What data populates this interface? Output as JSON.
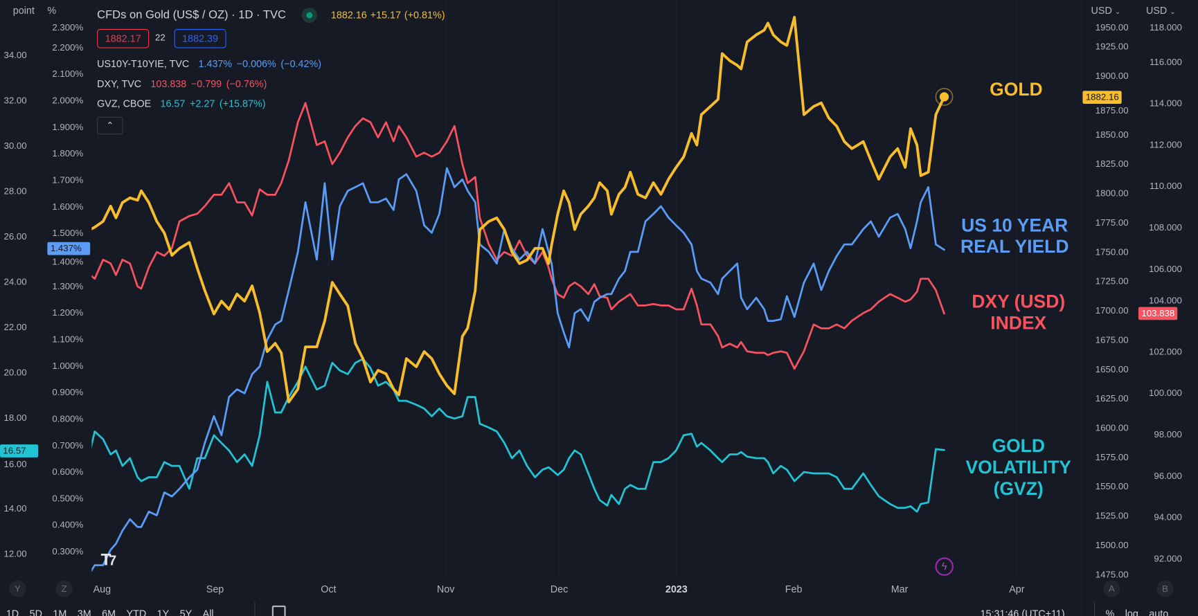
{
  "header": {
    "left_units": [
      "point",
      "%"
    ],
    "right_units": [
      "USD",
      "USD"
    ]
  },
  "legend": {
    "main": {
      "title": "CFDs on Gold (US$ / OZ) · 1D · TVC",
      "last": "1882.16",
      "change": "+15.17",
      "change_pct": "(+0.81%)"
    },
    "sell": "1882.17",
    "spread": "22",
    "buy": "1882.39",
    "series": [
      {
        "symbol": "US10Y-T10YIE, TVC",
        "last": "1.437%",
        "change": "−0.006%",
        "change_pct": "(−0.42%)"
      },
      {
        "symbol": "DXY, TVC",
        "last": "103.838",
        "change": "−0.799",
        "change_pct": "(−0.76%)"
      },
      {
        "symbol": "GVZ, CBOE",
        "last": "16.57",
        "change": "+2.27",
        "change_pct": "(+15.87%)"
      }
    ],
    "collapse_glyph": "⌃"
  },
  "price_badges": {
    "gold": "1882.16",
    "us10y": "1.437%",
    "dxy": "103.838",
    "gvz": "16.57"
  },
  "annotations": {
    "gold": [
      "GOLD"
    ],
    "us10y": [
      "US 10 YEAR",
      "REAL YIELD"
    ],
    "dxy": [
      "DXY (USD)",
      "INDEX"
    ],
    "gvz": [
      "GOLD",
      "VOLATILITY",
      "(GVZ)"
    ]
  },
  "axis_buttons": {
    "y": "Y",
    "z": "Z",
    "a": "A",
    "b": "B"
  },
  "bottom_toolbar": {
    "ranges": [
      "1D",
      "5D",
      "1M",
      "3M",
      "6M",
      "YTD",
      "1Y",
      "5Y",
      "All"
    ],
    "time": "15:31:46 (UTC+11)",
    "percent": "%",
    "log": "log",
    "auto": "auto"
  },
  "colors": {
    "gold": "#f7bd2c",
    "dxy": "#f7525f",
    "us10y": "#5b9cf6",
    "gvz": "#22c3d3",
    "bg": "#161a25"
  },
  "chart_data": {
    "type": "line",
    "title": "CFDs on Gold (US$ / OZ) · 1D · TVC",
    "x_unit": "days since 2022-08-01",
    "x_ticks": [
      {
        "label": "Aug",
        "day": 0
      },
      {
        "label": "Sep",
        "day": 31
      },
      {
        "label": "Oct",
        "day": 61
      },
      {
        "label": "Nov",
        "day": 92
      },
      {
        "label": "Dec",
        "day": 122
      },
      {
        "label": "2023",
        "day": 153,
        "bold": true
      },
      {
        "label": "Feb",
        "day": 184
      },
      {
        "label": "Mar",
        "day": 212
      },
      {
        "label": "Apr",
        "day": 243
      }
    ],
    "axes": {
      "pt": {
        "unit": "point",
        "ticks": [
          12,
          14,
          16,
          18,
          20,
          22,
          24,
          26,
          28,
          30,
          32,
          34
        ]
      },
      "pct": {
        "unit": "%",
        "ticks": [
          0.3,
          0.4,
          0.5,
          0.6,
          0.7,
          0.8,
          0.9,
          1.0,
          1.1,
          1.2,
          1.3,
          1.4,
          1.5,
          1.6,
          1.7,
          1.8,
          1.9,
          2.0,
          2.1,
          2.2,
          2.3
        ]
      },
      "gold": {
        "unit": "USD",
        "ticks": [
          1475,
          1500,
          1525,
          1550,
          1575,
          1600,
          1625,
          1650,
          1675,
          1700,
          1725,
          1750,
          1775,
          1800,
          1825,
          1850,
          1875,
          1900,
          1925,
          1950
        ]
      },
      "dxy": {
        "unit": "USD",
        "ticks": [
          92,
          94,
          96,
          98,
          100,
          102,
          104,
          106,
          108,
          110,
          112,
          114,
          116,
          118
        ]
      }
    },
    "x": [
      -2.0,
      -0.8,
      1.4,
      3.4,
      4.8,
      6.5,
      8.5,
      10.5,
      11.5,
      13.5,
      15.6,
      17.6,
      19.6,
      21.6,
      24.2,
      26.3,
      28.3,
      30.7,
      32.7,
      34.7,
      36.8,
      38.8,
      40.8,
      42.8,
      44.8,
      46.9,
      48.5,
      50.5,
      52.9,
      54.9,
      57.9,
      60.0,
      62.0,
      64.0,
      66.1,
      68.1,
      70.1,
      72.1,
      74.1,
      76.2,
      78.2,
      79.6,
      81.6,
      84.2,
      86.3,
      88.3,
      90.3,
      92.3,
      94.3,
      96.4,
      97.8,
      99.8,
      101.0,
      103.4,
      105.5,
      107.5,
      109.5,
      111.5,
      113.5,
      115.6,
      117.6,
      119.2,
      120.0,
      121.6,
      123.2,
      124.6,
      126.1,
      127.7,
      129.7,
      131.3,
      132.7,
      134.7,
      135.8,
      137.8,
      139.4,
      140.8,
      142.8,
      144.8,
      146.9,
      148.9,
      150.9,
      152.9,
      154.9,
      157.0,
      158.4,
      159.6,
      162.0,
      164.0,
      165.1,
      167.1,
      169.1,
      170.1,
      171.7,
      174.1,
      176.2,
      177.2,
      178.6,
      180.6,
      182.2,
      184.2,
      186.7,
      189.3,
      191.3,
      193.3,
      195.4,
      197.4,
      199.4,
      202.4,
      204.4,
      206.5,
      209.5,
      211.5,
      213.5,
      214.9,
      216.6,
      217.6,
      219.6,
      221.6,
      223.8
    ],
    "series": [
      {
        "name": "GVZ, CBOE",
        "key": "gvz",
        "scale": "pt",
        "values": [
          16.55,
          17.39,
          17.05,
          16.38,
          16.55,
          15.87,
          16.21,
          15.37,
          15.2,
          15.37,
          15.37,
          16.04,
          15.87,
          15.87,
          14.86,
          16.21,
          16.21,
          17.22,
          16.88,
          16.55,
          16.04,
          16.38,
          15.87,
          17.22,
          19.58,
          18.23,
          18.23,
          18.91,
          19.58,
          20.25,
          19.24,
          19.41,
          20.42,
          20.08,
          19.92,
          20.42,
          20.59,
          20.19,
          19.41,
          19.58,
          19.24,
          18.74,
          18.74,
          18.57,
          18.4,
          18.06,
          18.4,
          18.06,
          17.96,
          18.06,
          18.91,
          18.91,
          17.73,
          17.56,
          17.39,
          16.88,
          16.21,
          16.55,
          15.87,
          15.37,
          15.7,
          15.81,
          15.7,
          15.47,
          15.7,
          16.21,
          16.55,
          16.38,
          15.54,
          14.86,
          14.36,
          14.12,
          14.59,
          14.19,
          14.86,
          15.03,
          14.86,
          14.86,
          16.04,
          16.04,
          16.21,
          16.55,
          17.22,
          17.29,
          16.72,
          16.88,
          16.55,
          16.21,
          16.04,
          16.38,
          16.38,
          16.48,
          16.28,
          16.21,
          16.21,
          16.04,
          15.54,
          15.87,
          15.7,
          15.2,
          15.6,
          15.54,
          15.54,
          15.54,
          15.37,
          14.86,
          14.86,
          15.54,
          15.03,
          14.53,
          14.19,
          14.02,
          14.02,
          14.09,
          13.85,
          14.19,
          14.26,
          16.61,
          16.57
        ]
      },
      {
        "name": "DXY, TVC",
        "key": "dxy",
        "scale": "dxy",
        "values": [
          105.7,
          105.52,
          106.44,
          106.26,
          105.7,
          106.44,
          106.26,
          105.15,
          105.04,
          106.07,
          106.81,
          106.63,
          107.0,
          108.29,
          108.55,
          108.66,
          109.03,
          109.58,
          109.58,
          110.14,
          109.21,
          109.21,
          108.58,
          109.84,
          109.58,
          109.58,
          110.14,
          111.24,
          113.08,
          114.01,
          111.98,
          112.16,
          111.06,
          111.61,
          112.35,
          112.9,
          113.27,
          113.08,
          112.35,
          113.08,
          112.16,
          112.9,
          112.35,
          111.42,
          111.61,
          111.42,
          111.61,
          112.16,
          112.9,
          111.06,
          110.14,
          110.43,
          108.47,
          107.18,
          106.44,
          106.81,
          106.63,
          107.37,
          106.63,
          106.26,
          106.81,
          106.07,
          105.52,
          104.78,
          104.6,
          105.15,
          105.34,
          105.15,
          104.78,
          105.26,
          104.67,
          104.6,
          104.04,
          104.41,
          104.6,
          104.78,
          104.23,
          104.23,
          104.3,
          104.23,
          104.23,
          104.04,
          104.04,
          105.04,
          104.23,
          103.31,
          103.31,
          102.75,
          102.2,
          102.38,
          102.2,
          102.46,
          102.01,
          101.94,
          101.94,
          101.83,
          101.94,
          102.01,
          101.94,
          101.17,
          102.01,
          103.31,
          103.12,
          103.12,
          103.31,
          103.12,
          103.49,
          103.86,
          104.04,
          104.41,
          104.78,
          104.6,
          104.41,
          104.52,
          104.89,
          105.52,
          105.52,
          104.97,
          103.838
        ]
      },
      {
        "name": "US10Y-T10YIE, TVC",
        "key": "us10y",
        "scale": "pct",
        "values": [
          0.22,
          0.248,
          0.248,
          0.306,
          0.329,
          0.378,
          0.421,
          0.392,
          0.392,
          0.45,
          0.436,
          0.522,
          0.507,
          0.536,
          0.579,
          0.608,
          0.709,
          0.81,
          0.738,
          0.882,
          0.911,
          0.896,
          0.968,
          0.997,
          1.098,
          1.155,
          1.169,
          1.285,
          1.429,
          1.616,
          1.4,
          1.688,
          1.4,
          1.601,
          1.659,
          1.673,
          1.688,
          1.616,
          1.616,
          1.63,
          1.587,
          1.702,
          1.722,
          1.659,
          1.529,
          1.501,
          1.572,
          1.745,
          1.673,
          1.702,
          1.659,
          1.616,
          1.457,
          1.429,
          1.385,
          1.515,
          1.443,
          1.4,
          1.429,
          1.385,
          1.515,
          1.429,
          1.385,
          1.198,
          1.126,
          1.069,
          1.198,
          1.213,
          1.169,
          1.241,
          1.256,
          1.27,
          1.27,
          1.328,
          1.357,
          1.429,
          1.429,
          1.544,
          1.572,
          1.601,
          1.558,
          1.529,
          1.501,
          1.457,
          1.357,
          1.328,
          1.313,
          1.27,
          1.328,
          1.357,
          1.385,
          1.256,
          1.213,
          1.256,
          1.213,
          1.169,
          1.169,
          1.175,
          1.262,
          1.184,
          1.313,
          1.385,
          1.285,
          1.357,
          1.414,
          1.457,
          1.457,
          1.515,
          1.544,
          1.486,
          1.558,
          1.572,
          1.515,
          1.443,
          1.544,
          1.616,
          1.673,
          1.457,
          1.437
        ]
      },
      {
        "name": "CFDs on Gold (US$ / OZ)",
        "key": "gold",
        "scale": "gold",
        "values": [
          1769,
          1771,
          1776,
          1789,
          1779,
          1792,
          1796,
          1794,
          1802,
          1792,
          1776,
          1766,
          1747,
          1753,
          1758,
          1736,
          1717,
          1697,
          1708,
          1701,
          1714,
          1708,
          1721,
          1698,
          1665,
          1672,
          1664,
          1622,
          1633,
          1669,
          1669,
          1691,
          1724,
          1714,
          1704,
          1672,
          1659,
          1639,
          1649,
          1646,
          1633,
          1628,
          1659,
          1652,
          1665,
          1659,
          1646,
          1636,
          1629,
          1678,
          1685,
          1717,
          1769,
          1776,
          1779,
          1769,
          1750,
          1740,
          1743,
          1753,
          1753,
          1740,
          1756,
          1782,
          1802,
          1792,
          1769,
          1782,
          1789,
          1796,
          1809,
          1802,
          1782,
          1799,
          1805,
          1818,
          1799,
          1796,
          1809,
          1799,
          1812,
          1822,
          1831,
          1851,
          1841,
          1867,
          1874,
          1880,
          1919,
          1913,
          1909,
          1906,
          1929,
          1935,
          1939,
          1945,
          1935,
          1929,
          1926,
          1950,
          1867,
          1874,
          1877,
          1864,
          1857,
          1844,
          1838,
          1844,
          1828,
          1812,
          1831,
          1838,
          1822,
          1855,
          1841,
          1815,
          1818,
          1867,
          1882.16
        ]
      }
    ]
  }
}
